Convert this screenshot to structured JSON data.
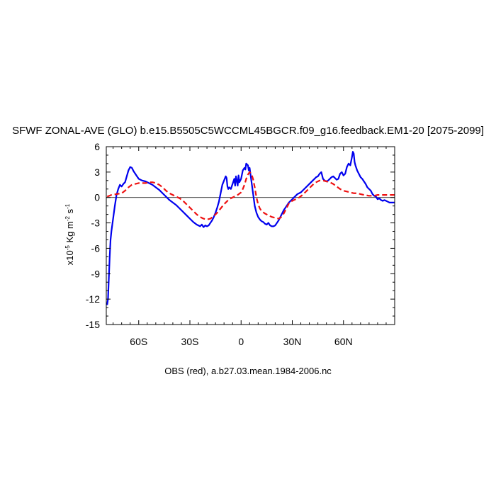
{
  "chart_data": {
    "type": "line",
    "title": "SFWF ZONAL-AVE (GLO) b.e15.B5505C5WCCML45BGCR.f09_g16.feedback.EM1-20 [2075-2099]",
    "ylabel": {
      "prefix": "x10",
      "exp1": "-5",
      "unit1": " Kg m",
      "exp2": "-2",
      "unit2": " s",
      "exp3": "-1"
    },
    "caption": "OBS (red), a.b27.03.mean.1984-2006.nc",
    "xlim": [
      -79,
      90
    ],
    "ylim": [
      -15,
      6
    ],
    "x_ticks": [
      {
        "value": -60,
        "label": "60S"
      },
      {
        "value": -30,
        "label": "30S"
      },
      {
        "value": 0,
        "label": "0"
      },
      {
        "value": 30,
        "label": "30N"
      },
      {
        "value": 60,
        "label": "60N"
      }
    ],
    "y_ticks": [
      {
        "value": 6,
        "label": "6"
      },
      {
        "value": 3,
        "label": "3"
      },
      {
        "value": 0,
        "label": "0"
      },
      {
        "value": -3,
        "label": "-3"
      },
      {
        "value": -6,
        "label": "-6"
      },
      {
        "value": -9,
        "label": "-9"
      },
      {
        "value": -12,
        "label": "-12"
      },
      {
        "value": -15,
        "label": "-15"
      }
    ],
    "zero_line": true,
    "series": [
      {
        "color": "#0000ee",
        "dash": "solid",
        "points": [
          [
            -78.5,
            -12.7
          ],
          [
            -78,
            -12
          ],
          [
            -77.5,
            -9.5
          ],
          [
            -77,
            -7
          ],
          [
            -76.5,
            -5
          ],
          [
            -76,
            -4
          ],
          [
            -75,
            -2.5
          ],
          [
            -74,
            -1
          ],
          [
            -73,
            0.3
          ],
          [
            -72,
            1
          ],
          [
            -71,
            1.5
          ],
          [
            -70,
            1.3
          ],
          [
            -69,
            1.6
          ],
          [
            -68,
            1.8
          ],
          [
            -67,
            2.5
          ],
          [
            -66,
            3.2
          ],
          [
            -65,
            3.6
          ],
          [
            -64,
            3.5
          ],
          [
            -63,
            3.1
          ],
          [
            -62,
            2.8
          ],
          [
            -61,
            2.5
          ],
          [
            -60,
            2.2
          ],
          [
            -58,
            2.0
          ],
          [
            -56,
            1.9
          ],
          [
            -54,
            1.7
          ],
          [
            -52,
            1.5
          ],
          [
            -50,
            1.2
          ],
          [
            -48,
            0.9
          ],
          [
            -46,
            0.5
          ],
          [
            -44,
            0.1
          ],
          [
            -42,
            -0.3
          ],
          [
            -40,
            -0.6
          ],
          [
            -38,
            -0.9
          ],
          [
            -36,
            -1.3
          ],
          [
            -34,
            -1.7
          ],
          [
            -32,
            -2.1
          ],
          [
            -30,
            -2.5
          ],
          [
            -28,
            -2.9
          ],
          [
            -26,
            -3.2
          ],
          [
            -24,
            -3.4
          ],
          [
            -23,
            -3.2
          ],
          [
            -22,
            -3.5
          ],
          [
            -21,
            -3.3
          ],
          [
            -20,
            -3.4
          ],
          [
            -19,
            -3.3
          ],
          [
            -18,
            -3.0
          ],
          [
            -17,
            -2.7
          ],
          [
            -16,
            -2.3
          ],
          [
            -15,
            -1.8
          ],
          [
            -14,
            -1.2
          ],
          [
            -13,
            -0.5
          ],
          [
            -12,
            0.5
          ],
          [
            -11,
            1.5
          ],
          [
            -10,
            2.0
          ],
          [
            -9,
            2.5
          ],
          [
            -8.5,
            2.3
          ],
          [
            -8,
            1.3
          ],
          [
            -7.5,
            1.0
          ],
          [
            -7,
            1.2
          ],
          [
            -6,
            1.0
          ],
          [
            -5,
            1.6
          ],
          [
            -4,
            2.2
          ],
          [
            -3.5,
            1.4
          ],
          [
            -3,
            2.5
          ],
          [
            -2,
            1.4
          ],
          [
            -1.5,
            2.6
          ],
          [
            -1,
            1.8
          ],
          [
            0,
            2.2
          ],
          [
            1,
            3.2
          ],
          [
            2,
            3.5
          ],
          [
            2.5,
            3.3
          ],
          [
            3,
            4.0
          ],
          [
            4,
            3.8
          ],
          [
            4.5,
            3.2
          ],
          [
            5,
            3.5
          ],
          [
            6,
            2.0
          ],
          [
            7,
            0.5
          ],
          [
            8,
            -1.0
          ],
          [
            9,
            -1.8
          ],
          [
            10,
            -2.3
          ],
          [
            11,
            -2.6
          ],
          [
            12,
            -2.8
          ],
          [
            13,
            -2.9
          ],
          [
            14,
            -3.1
          ],
          [
            15,
            -3.2
          ],
          [
            16,
            -3.0
          ],
          [
            17,
            -3.3
          ],
          [
            18,
            -3.4
          ],
          [
            19,
            -3.4
          ],
          [
            20,
            -3.3
          ],
          [
            21,
            -3.0
          ],
          [
            22,
            -2.7
          ],
          [
            23,
            -2.3
          ],
          [
            24,
            -1.9
          ],
          [
            25,
            -1.5
          ],
          [
            26,
            -1.2
          ],
          [
            27,
            -0.9
          ],
          [
            28,
            -0.6
          ],
          [
            29,
            -0.4
          ],
          [
            30,
            -0.2
          ],
          [
            31,
            0.0
          ],
          [
            32,
            0.2
          ],
          [
            33,
            0.4
          ],
          [
            34,
            0.5
          ],
          [
            35,
            0.6
          ],
          [
            36,
            0.8
          ],
          [
            37,
            1.0
          ],
          [
            38,
            1.2
          ],
          [
            39,
            1.4
          ],
          [
            40,
            1.6
          ],
          [
            41,
            1.8
          ],
          [
            42,
            2.0
          ],
          [
            43,
            2.2
          ],
          [
            44,
            2.4
          ],
          [
            45,
            2.5
          ],
          [
            46,
            2.8
          ],
          [
            47,
            3.0
          ],
          [
            47.5,
            2.6
          ],
          [
            48,
            2.2
          ],
          [
            49,
            2.0
          ],
          [
            50,
            1.9
          ],
          [
            51,
            2.0
          ],
          [
            52,
            2.2
          ],
          [
            53,
            2.4
          ],
          [
            54,
            2.5
          ],
          [
            55,
            2.3
          ],
          [
            56,
            2.1
          ],
          [
            57,
            2.2
          ],
          [
            58,
            2.8
          ],
          [
            59,
            3.0
          ],
          [
            60,
            2.6
          ],
          [
            61,
            2.8
          ],
          [
            62,
            3.6
          ],
          [
            63,
            4.0
          ],
          [
            64,
            3.8
          ],
          [
            65,
            4.8
          ],
          [
            65.5,
            5.4
          ],
          [
            66,
            5.2
          ],
          [
            66.5,
            4.2
          ],
          [
            67,
            3.8
          ],
          [
            68,
            3.2
          ],
          [
            69,
            2.8
          ],
          [
            70,
            2.4
          ],
          [
            71,
            2.2
          ],
          [
            72,
            1.9
          ],
          [
            73,
            1.6
          ],
          [
            74,
            1.2
          ],
          [
            75,
            1.0
          ],
          [
            76,
            0.8
          ],
          [
            77,
            0.4
          ],
          [
            78,
            0.2
          ],
          [
            79,
            0.1
          ],
          [
            80,
            -0.2
          ],
          [
            81,
            -0.1
          ],
          [
            82,
            -0.3
          ],
          [
            83,
            -0.4
          ],
          [
            84,
            -0.3
          ],
          [
            85,
            -0.4
          ],
          [
            86,
            -0.5
          ],
          [
            87,
            -0.6
          ],
          [
            88,
            -0.6
          ],
          [
            89,
            -0.6
          ],
          [
            90,
            -0.6
          ]
        ]
      },
      {
        "color": "#ee1111",
        "dash": "dashed",
        "points": [
          [
            -78.5,
            0.1
          ],
          [
            -76,
            0.3
          ],
          [
            -73,
            0.4
          ],
          [
            -70,
            0.5
          ],
          [
            -68,
            0.8
          ],
          [
            -66,
            1.2
          ],
          [
            -64,
            1.5
          ],
          [
            -62,
            1.6
          ],
          [
            -60,
            1.7
          ],
          [
            -58,
            1.7
          ],
          [
            -56,
            1.7
          ],
          [
            -54,
            1.8
          ],
          [
            -52,
            1.8
          ],
          [
            -50,
            1.7
          ],
          [
            -48,
            1.5
          ],
          [
            -46,
            1.2
          ],
          [
            -44,
            0.8
          ],
          [
            -42,
            0.5
          ],
          [
            -40,
            0.3
          ],
          [
            -38,
            0.1
          ],
          [
            -36,
            -0.1
          ],
          [
            -34,
            -0.4
          ],
          [
            -32,
            -0.8
          ],
          [
            -30,
            -1.2
          ],
          [
            -28,
            -1.6
          ],
          [
            -26,
            -2.0
          ],
          [
            -24,
            -2.3
          ],
          [
            -22,
            -2.5
          ],
          [
            -20,
            -2.6
          ],
          [
            -18,
            -2.5
          ],
          [
            -16,
            -2.2
          ],
          [
            -14,
            -1.8
          ],
          [
            -12,
            -1.3
          ],
          [
            -10,
            -0.8
          ],
          [
            -8,
            -0.4
          ],
          [
            -6,
            -0.1
          ],
          [
            -4,
            0.1
          ],
          [
            -2,
            0.3
          ],
          [
            0,
            0.6
          ],
          [
            1,
            1.0
          ],
          [
            2,
            1.5
          ],
          [
            3,
            2.2
          ],
          [
            4,
            2.7
          ],
          [
            5,
            3.0
          ],
          [
            6,
            2.8
          ],
          [
            7,
            2.2
          ],
          [
            8,
            1.2
          ],
          [
            9,
            0.0
          ],
          [
            10,
            -0.8
          ],
          [
            11,
            -1.3
          ],
          [
            12,
            -1.6
          ],
          [
            14,
            -1.9
          ],
          [
            16,
            -2.1
          ],
          [
            18,
            -2.3
          ],
          [
            20,
            -2.4
          ],
          [
            22,
            -2.5
          ],
          [
            23,
            -2.4
          ],
          [
            24,
            -2.2
          ],
          [
            25,
            -1.9
          ],
          [
            26,
            -1.5
          ],
          [
            27,
            -1.1
          ],
          [
            28,
            -0.7
          ],
          [
            29,
            -0.5
          ],
          [
            30,
            -0.4
          ],
          [
            31,
            -0.3
          ],
          [
            32,
            -0.2
          ],
          [
            34,
            0.0
          ],
          [
            36,
            0.3
          ],
          [
            38,
            0.7
          ],
          [
            40,
            1.1
          ],
          [
            42,
            1.5
          ],
          [
            44,
            1.8
          ],
          [
            46,
            2.0
          ],
          [
            48,
            2.0
          ],
          [
            50,
            1.9
          ],
          [
            52,
            1.8
          ],
          [
            54,
            1.6
          ],
          [
            56,
            1.3
          ],
          [
            58,
            1.0
          ],
          [
            60,
            0.8
          ],
          [
            62,
            0.7
          ],
          [
            64,
            0.6
          ],
          [
            66,
            0.5
          ],
          [
            68,
            0.5
          ],
          [
            70,
            0.4
          ],
          [
            72,
            0.3
          ],
          [
            75,
            0.2
          ],
          [
            78,
            0.2
          ],
          [
            80,
            0.3
          ],
          [
            84,
            0.3
          ],
          [
            88,
            0.3
          ],
          [
            90,
            0.3
          ]
        ]
      }
    ]
  }
}
